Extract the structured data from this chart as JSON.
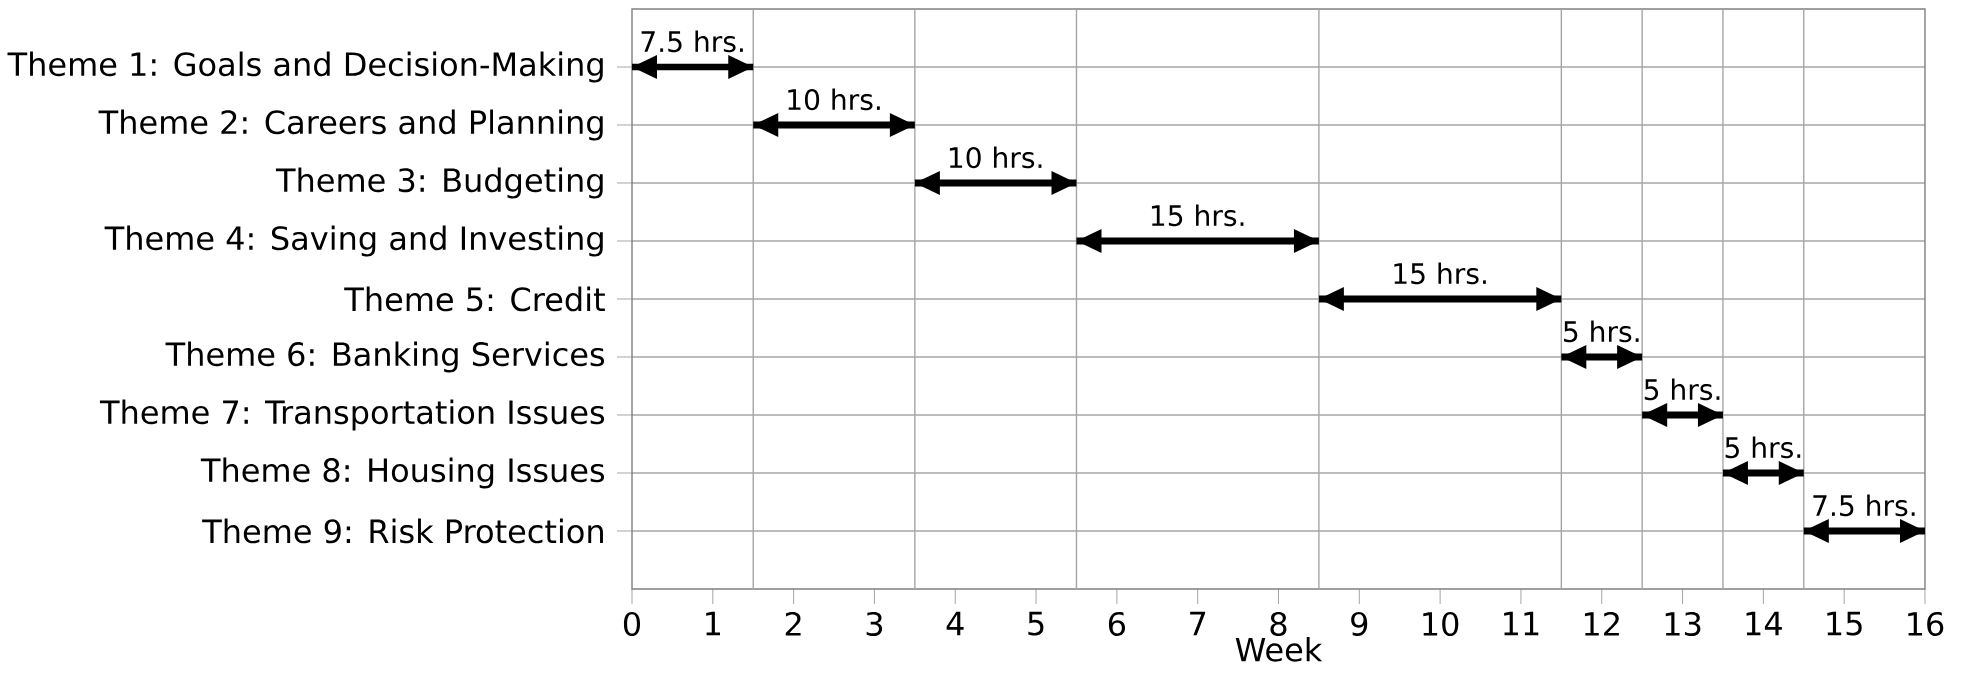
{
  "chart_data": {
    "type": "bar",
    "orientation": "horizontal",
    "xlabel": "Week",
    "categories": [
      "Theme 1: Goals and Decision-Making",
      "Theme 2: Careers and Planning",
      "Theme 3: Budgeting",
      "Theme 4: Saving and Investing",
      "Theme 5: Credit",
      "Theme 6: Banking Services",
      "Theme 7: Transportation Issues",
      "Theme 8: Housing Issues",
      "Theme 9: Risk Protection"
    ],
    "base": [
      0,
      1.5,
      3.5,
      5.5,
      8.5,
      11.5,
      12.5,
      13.5,
      14.5
    ],
    "values": [
      1.5,
      2,
      2,
      3,
      3,
      1,
      1,
      1,
      1.5
    ],
    "annotations": [
      "7.5 hrs.",
      "10 hrs.",
      "10 hrs.",
      "15 hrs.",
      "15 hrs.",
      "5 hrs.",
      "5 hrs.",
      "5 hrs.",
      "7.5 hrs."
    ],
    "color": "#000000",
    "xlim": [
      0,
      16
    ],
    "xticks": [
      0,
      1,
      2,
      3,
      4,
      5,
      6,
      7,
      8,
      9,
      10,
      11,
      12,
      13,
      14,
      15,
      16
    ],
    "grid": "y",
    "ref_lines": [
      {
        "axis": "x",
        "value": 1.5
      },
      {
        "axis": "x",
        "value": 3.5
      },
      {
        "axis": "x",
        "value": 5.5
      },
      {
        "axis": "x",
        "value": 8.5
      },
      {
        "axis": "x",
        "value": 11.5
      },
      {
        "axis": "x",
        "value": 12.5
      },
      {
        "axis": "x",
        "value": 13.5
      },
      {
        "axis": "x",
        "value": 14.5
      }
    ]
  }
}
